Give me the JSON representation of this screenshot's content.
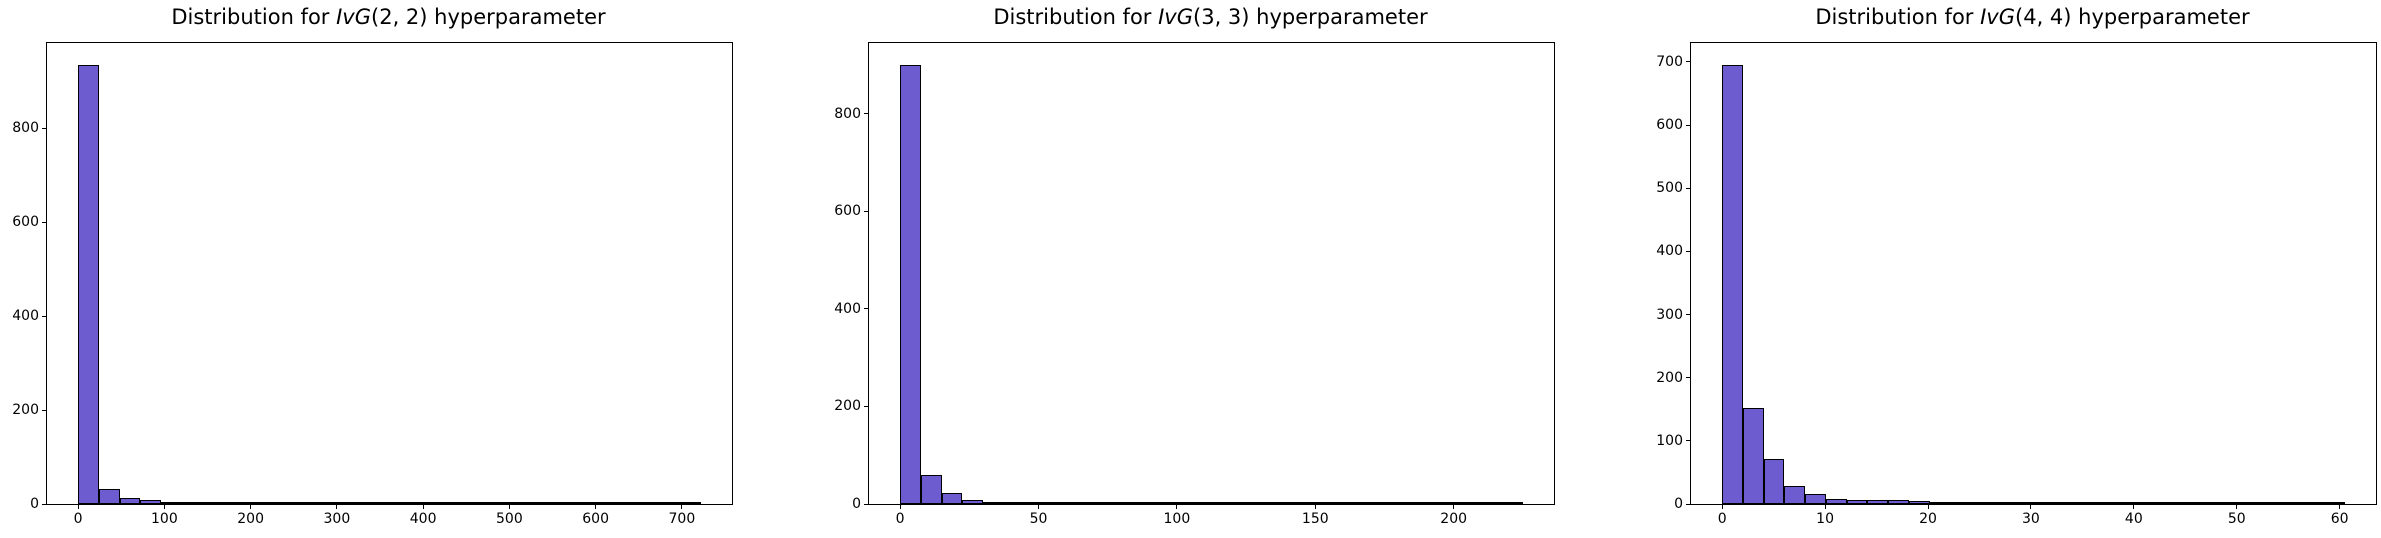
{
  "figure": {
    "background": "#ffffff",
    "text_color": "#000000"
  },
  "chart_data": [
    {
      "type": "bar",
      "subtype": "histogram",
      "title": "Distribution for IvG(2, 2) hyperparameter",
      "title_parts": {
        "prefix": "Distribution for ",
        "italic": "IvG",
        "suffix": "(2, 2) hyperparameter"
      },
      "xlabel": "",
      "ylabel": "",
      "bin_start": 0,
      "bin_width": 24.07,
      "counts": [
        935,
        33,
        12,
        9,
        4,
        2,
        5,
        3,
        1,
        0,
        0,
        0,
        0,
        0,
        0,
        0,
        0,
        0,
        0,
        0,
        0,
        3,
        0,
        0,
        0,
        0,
        0,
        0,
        0,
        1
      ],
      "xlim": [
        -36.1,
        758.1
      ],
      "ylim": [
        0,
        982
      ],
      "xticks": [
        0,
        100,
        200,
        300,
        400,
        500,
        600,
        700
      ],
      "yticks": [
        0,
        200,
        400,
        600,
        800
      ],
      "grid": false,
      "legend": null,
      "bar_fill": "#6C5CD0",
      "bar_edge": "#000000"
    },
    {
      "type": "bar",
      "subtype": "histogram",
      "title": "Distribution for IvG(3, 3) hyperparameter",
      "title_parts": {
        "prefix": "Distribution for ",
        "italic": "IvG",
        "suffix": "(3, 3) hyperparameter"
      },
      "xlabel": "",
      "ylabel": "",
      "bin_start": 0,
      "bin_width": 7.5,
      "counts": [
        900,
        60,
        22,
        8,
        0,
        4,
        2,
        0,
        0,
        3,
        0,
        0,
        0,
        0,
        0,
        0,
        0,
        0,
        0,
        0,
        0,
        0,
        0,
        0,
        0,
        0,
        0,
        0,
        0,
        1
      ],
      "xlim": [
        -11.25,
        236.25
      ],
      "ylim": [
        0,
        945
      ],
      "xticks": [
        0,
        50,
        100,
        150,
        200
      ],
      "yticks": [
        0,
        200,
        400,
        600,
        800
      ],
      "grid": false,
      "legend": null,
      "bar_fill": "#6C5CD0",
      "bar_edge": "#000000"
    },
    {
      "type": "bar",
      "subtype": "histogram",
      "title": "Distribution for IvG(4, 4) hyperparameter",
      "title_parts": {
        "prefix": "Distribution for ",
        "italic": "IvG",
        "suffix": "(4, 4) hyperparameter"
      },
      "xlabel": "",
      "ylabel": "",
      "bin_start": 0,
      "bin_width": 2.017,
      "counts": [
        695,
        152,
        71,
        29,
        16,
        8,
        6,
        6,
        7,
        5,
        0,
        0,
        0,
        0,
        0,
        0,
        0,
        0,
        0,
        0,
        0,
        0,
        0,
        0,
        0,
        0,
        0,
        0,
        0,
        1
      ],
      "xlim": [
        -3.03,
        63.53
      ],
      "ylim": [
        0,
        730
      ],
      "xticks": [
        0,
        10,
        20,
        30,
        40,
        50,
        60
      ],
      "yticks": [
        0,
        100,
        200,
        300,
        400,
        500,
        600,
        700
      ],
      "grid": false,
      "legend": null,
      "bar_fill": "#6C5CD0",
      "bar_edge": "#000000"
    }
  ]
}
